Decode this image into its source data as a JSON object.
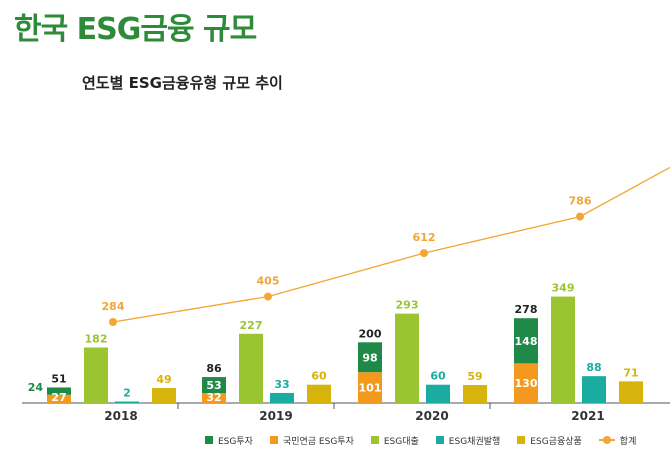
{
  "page_title": "한국 ESG금융 규모",
  "chart_data": {
    "type": "bar",
    "title": "연도별 ESG금융유형 규모 추이",
    "categories": [
      "2018",
      "2019",
      "2020",
      "2021"
    ],
    "series": [
      {
        "name": "ESG투자",
        "color": "#1f8a48",
        "values": [
          24,
          53,
          98,
          148
        ],
        "stacked_on": "국민연금 ESG투자",
        "stack_total_labels": [
          51,
          86,
          200,
          278
        ]
      },
      {
        "name": "국민연금 ESG투자",
        "color": "#f39a1e",
        "values": [
          27,
          32,
          101,
          130
        ]
      },
      {
        "name": "ESG대출",
        "color": "#9bc530",
        "values": [
          182,
          227,
          293,
          349
        ]
      },
      {
        "name": "ESG채권발행",
        "color": "#1aaca0",
        "values": [
          2,
          33,
          60,
          88
        ]
      },
      {
        "name": "ESG금융상품",
        "color": "#d6b40c",
        "values": [
          49,
          60,
          59,
          71
        ]
      }
    ],
    "line_series": {
      "name": "합계",
      "color": "#f4a533",
      "values": [
        284,
        405,
        612,
        786
      ]
    },
    "legend_position": "bottom",
    "grid": false
  },
  "legend": [
    {
      "label": "ESG투자",
      "color": "#1f8a48",
      "icon": "square"
    },
    {
      "label": "국민연금 ESG투자",
      "color": "#f39a1e",
      "icon": "square"
    },
    {
      "label": "ESG대출",
      "color": "#9bc530",
      "icon": "square"
    },
    {
      "label": "ESG채권발행",
      "color": "#1aaca0",
      "icon": "square"
    },
    {
      "label": "ESG금융상품",
      "color": "#d6b40c",
      "icon": "square"
    },
    {
      "label": "합계",
      "color": "#f4a533",
      "icon": "line-dot"
    }
  ]
}
